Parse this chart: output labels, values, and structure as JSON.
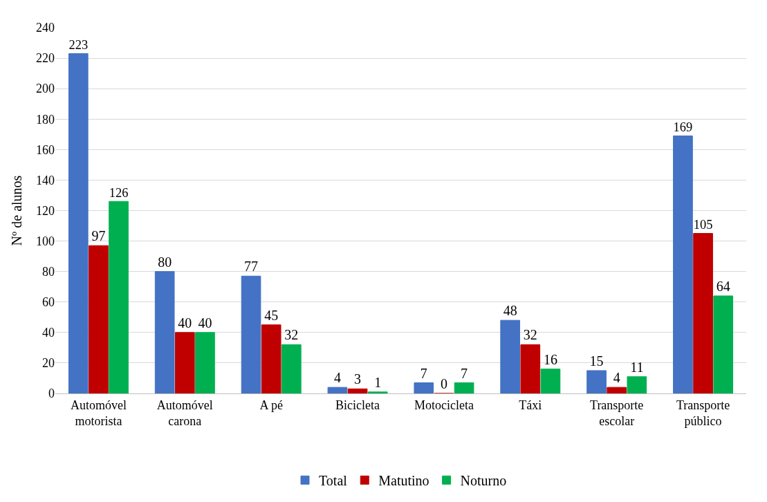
{
  "chart_data": {
    "type": "bar",
    "ylabel": "Nº de alunos",
    "categories": [
      "Automóvel motorista",
      "Automóvel carona",
      "A pé",
      "Bicicleta",
      "Motocicleta",
      "Táxi",
      "Transporte escolar",
      "Transporte público"
    ],
    "series": [
      {
        "name": "Total",
        "color": "#4472c4",
        "values": [
          223,
          80,
          77,
          4,
          7,
          48,
          15,
          169
        ]
      },
      {
        "name": "Matutino",
        "color": "#c00000",
        "values": [
          97,
          40,
          45,
          3,
          0,
          32,
          4,
          105
        ]
      },
      {
        "name": "Noturno",
        "color": "#00b050",
        "values": [
          126,
          40,
          32,
          1,
          7,
          16,
          11,
          64
        ]
      }
    ],
    "ylim": [
      0,
      240
    ],
    "yticks": [
      0,
      20,
      40,
      60,
      80,
      100,
      120,
      140,
      160,
      180,
      200,
      220,
      240
    ],
    "grid": "y",
    "legend": "bottom",
    "data_labels": true
  }
}
